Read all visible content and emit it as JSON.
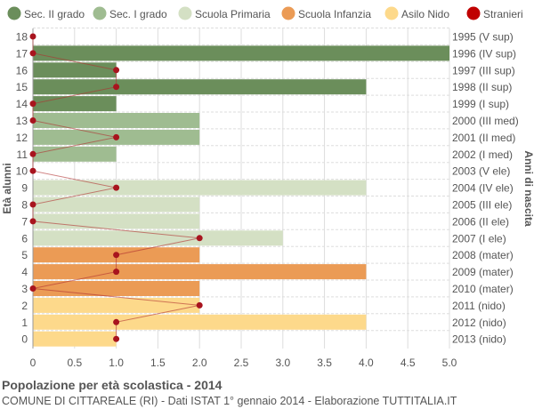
{
  "chart_data": {
    "type": "bar",
    "orientation": "horizontal",
    "ylabel": "Età alunni",
    "ylabel_right": "Anni di nascita",
    "xlim": [
      0,
      5
    ],
    "xticks": [
      "0",
      "0.5",
      "1.0",
      "1.5",
      "2.0",
      "2.5",
      "3.0",
      "3.5",
      "4.0",
      "4.5",
      "5.0"
    ],
    "grid": true,
    "legend_position": "top",
    "legend": [
      {
        "name": "Sec. II grado",
        "color": "#6b8e5b"
      },
      {
        "name": "Sec. I grado",
        "color": "#9fbc91"
      },
      {
        "name": "Scuola Primaria",
        "color": "#d4e0c4"
      },
      {
        "name": "Scuola Infanzia",
        "color": "#eb9b55"
      },
      {
        "name": "Asilo Nido",
        "color": "#fdd98b"
      },
      {
        "name": "Stranieri",
        "color": "#c00000"
      }
    ],
    "ages": [
      18,
      17,
      16,
      15,
      14,
      13,
      12,
      11,
      10,
      9,
      8,
      7,
      6,
      5,
      4,
      3,
      2,
      1,
      0
    ],
    "birth_years": [
      "1995 (V sup)",
      "1996 (IV sup)",
      "1997 (III sup)",
      "1998 (II sup)",
      "1999 (I sup)",
      "2000 (III med)",
      "2001 (II med)",
      "2002 (I med)",
      "2003 (V ele)",
      "2004 (IV ele)",
      "2005 (III ele)",
      "2006 (II ele)",
      "2007 (I ele)",
      "2008 (mater)",
      "2009 (mater)",
      "2010 (mater)",
      "2011 (nido)",
      "2012 (nido)",
      "2013 (nido)"
    ],
    "school_level_index": [
      0,
      0,
      0,
      0,
      0,
      1,
      1,
      1,
      2,
      2,
      2,
      2,
      2,
      3,
      3,
      3,
      4,
      4,
      4
    ],
    "values": [
      0,
      5,
      1,
      4,
      1,
      2,
      2,
      1,
      0,
      4,
      2,
      2,
      3,
      2,
      4,
      2,
      2,
      4,
      1
    ],
    "stranieri": [
      0,
      0,
      1,
      1,
      0,
      0,
      1,
      0,
      0,
      1,
      0,
      0,
      2,
      1,
      1,
      0,
      2,
      1,
      1
    ]
  },
  "title": "Popolazione per età scolastica - 2014",
  "subtitle": "COMUNE DI CITTAREALE (RI) - Dati ISTAT 1° gennaio 2014 - Elaborazione TUTTITALIA.IT"
}
